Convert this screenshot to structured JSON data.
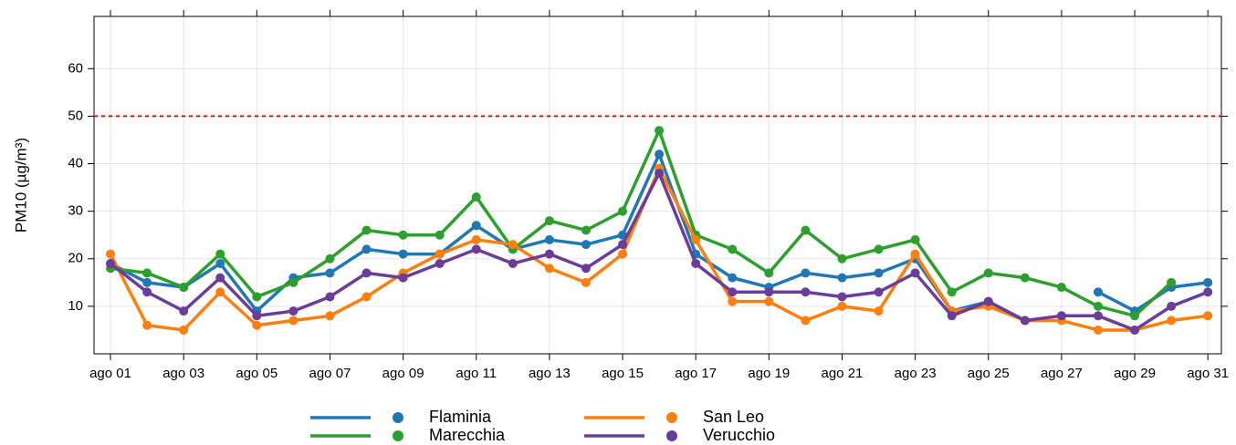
{
  "chart_data": {
    "type": "line",
    "y_label": "PM10 (µg/m³)",
    "categories": [
      "ago 01",
      null,
      "ago 03",
      null,
      "ago 05",
      null,
      "ago 07",
      null,
      "ago 09",
      null,
      "ago 11",
      null,
      "ago 13",
      null,
      "ago 15",
      null,
      "ago 17",
      null,
      "ago 19",
      null,
      "ago 21",
      null,
      "ago 23",
      null,
      "ago 25",
      null,
      "ago 27",
      null,
      "ago 29",
      null,
      "ago 31"
    ],
    "series": [
      {
        "name": "Flaminia",
        "color": "#1f77b4",
        "values": [
          19,
          15,
          14,
          19,
          9,
          16,
          17,
          22,
          21,
          21,
          27,
          22,
          24,
          23,
          25,
          42,
          21,
          16,
          14,
          17,
          16,
          17,
          20,
          9,
          11,
          7,
          null,
          13,
          9,
          14,
          15
        ]
      },
      {
        "name": "Marecchia",
        "color": "#2ca02c",
        "values": [
          18,
          17,
          14,
          21,
          12,
          15,
          20,
          26,
          25,
          25,
          33,
          22,
          28,
          26,
          30,
          47,
          25,
          22,
          17,
          26,
          20,
          22,
          24,
          13,
          17,
          16,
          14,
          10,
          8,
          15,
          null
        ]
      },
      {
        "name": "San Leo",
        "color": "#ff7f0e",
        "values": [
          21,
          6,
          5,
          13,
          6,
          7,
          8,
          12,
          17,
          21,
          24,
          23,
          18,
          15,
          21,
          39,
          24,
          11,
          11,
          7,
          10,
          9,
          21,
          9,
          10,
          7,
          7,
          5,
          5,
          7,
          8
        ]
      },
      {
        "name": "Verucchio",
        "color": "#6a3d9a",
        "values": [
          19,
          13,
          9,
          16,
          8,
          9,
          12,
          17,
          16,
          19,
          22,
          19,
          21,
          18,
          23,
          38,
          19,
          13,
          13,
          13,
          12,
          13,
          17,
          8,
          11,
          7,
          8,
          8,
          5,
          10,
          13
        ]
      }
    ],
    "ylim": [
      0,
      71
    ],
    "yticks": [
      10,
      20,
      30,
      40,
      50,
      60
    ],
    "grid": true,
    "reference_line": {
      "value": 50,
      "color": "#ff0000"
    },
    "legend": "bottom"
  }
}
